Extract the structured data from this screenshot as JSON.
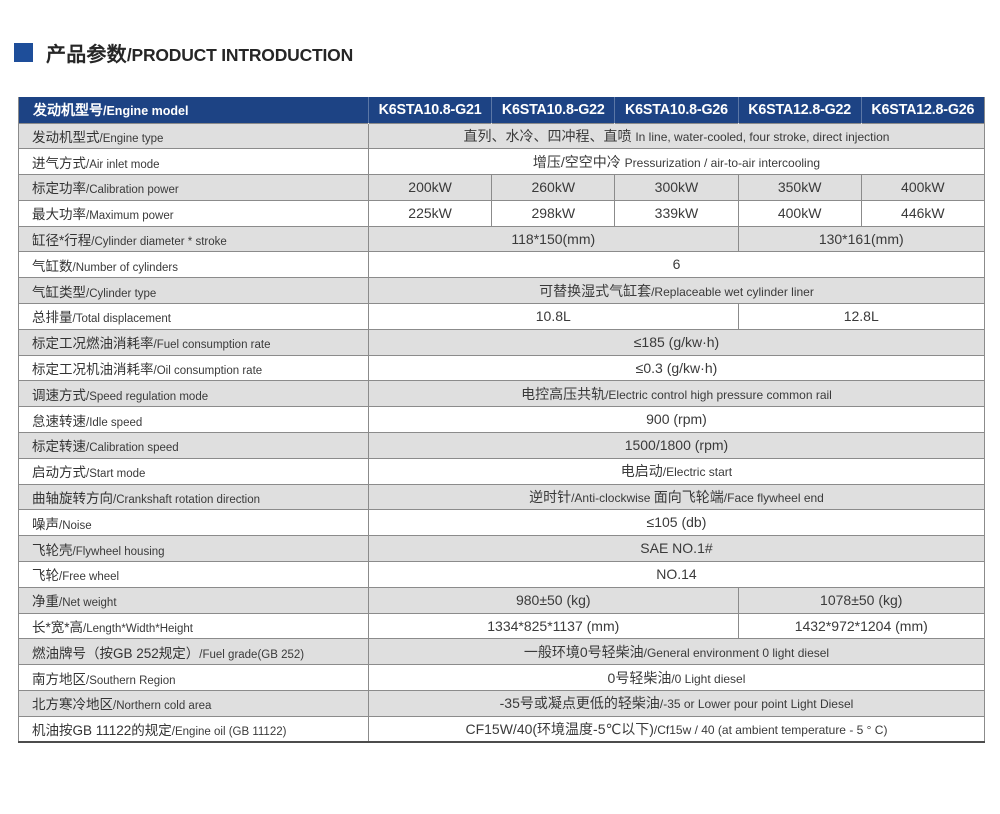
{
  "title": {
    "cn": "产品参数",
    "en": "/PRODUCT INTRODUCTION"
  },
  "colors": {
    "header_bg": "#1d4384",
    "title_square": "#1e4e9a",
    "row_shade": "#dfdfdf",
    "grid_border": "#8b8b8b",
    "text": "#333333"
  },
  "table": {
    "header": {
      "label": [
        {
          "t": "发动机型号"
        },
        {
          "t": "/Engine model",
          "en": true
        }
      ],
      "models": [
        "K6STA10.8-G21",
        "K6STA10.8-G22",
        "K6STA10.8-G26",
        "K6STA12.8-G22",
        "K6STA12.8-G26"
      ]
    },
    "rows": [
      {
        "name": "engine-type",
        "label": [
          {
            "t": "发动机型式"
          },
          {
            "t": "/Engine type",
            "en": true
          }
        ],
        "cells": [
          {
            "span": 5,
            "seg": [
              {
                "t": "直列、水冷、四冲程、直喷 "
              },
              {
                "t": "In line, water-cooled, four stroke, direct injection",
                "en": true
              }
            ]
          }
        ]
      },
      {
        "name": "air-inlet-mode",
        "label": [
          {
            "t": "进气方式"
          },
          {
            "t": "/Air inlet mode",
            "en": true
          }
        ],
        "cells": [
          {
            "span": 5,
            "seg": [
              {
                "t": "增压/空空中冷 "
              },
              {
                "t": "Pressurization / air-to-air intercooling",
                "en": true
              }
            ]
          }
        ]
      },
      {
        "name": "calibration-power",
        "label": [
          {
            "t": "标定功率"
          },
          {
            "t": "/Calibration power",
            "en": true
          }
        ],
        "cells": [
          {
            "span": 1,
            "seg": [
              {
                "t": "200kW"
              }
            ]
          },
          {
            "span": 1,
            "seg": [
              {
                "t": "260kW"
              }
            ]
          },
          {
            "span": 1,
            "seg": [
              {
                "t": "300kW"
              }
            ]
          },
          {
            "span": 1,
            "seg": [
              {
                "t": "350kW"
              }
            ]
          },
          {
            "span": 1,
            "seg": [
              {
                "t": "400kW"
              }
            ]
          }
        ]
      },
      {
        "name": "maximum-power",
        "label": [
          {
            "t": "最大功率"
          },
          {
            "t": "/Maximum power",
            "en": true
          }
        ],
        "cells": [
          {
            "span": 1,
            "seg": [
              {
                "t": "225kW"
              }
            ]
          },
          {
            "span": 1,
            "seg": [
              {
                "t": "298kW"
              }
            ]
          },
          {
            "span": 1,
            "seg": [
              {
                "t": "339kW"
              }
            ]
          },
          {
            "span": 1,
            "seg": [
              {
                "t": "400kW"
              }
            ]
          },
          {
            "span": 1,
            "seg": [
              {
                "t": "446kW"
              }
            ]
          }
        ]
      },
      {
        "name": "cylinder-diameter-stroke",
        "label": [
          {
            "t": "缸径*行程"
          },
          {
            "t": "/Cylinder diameter * stroke",
            "en": true
          }
        ],
        "cells": [
          {
            "span": 3,
            "seg": [
              {
                "t": "118*150(mm)"
              }
            ]
          },
          {
            "span": 2,
            "seg": [
              {
                "t": "130*161(mm)"
              }
            ]
          }
        ]
      },
      {
        "name": "number-of-cylinders",
        "label": [
          {
            "t": "气缸数"
          },
          {
            "t": "/Number of cylinders",
            "en": true
          }
        ],
        "cells": [
          {
            "span": 5,
            "seg": [
              {
                "t": "6"
              }
            ]
          }
        ]
      },
      {
        "name": "cylinder-type",
        "label": [
          {
            "t": "气缸类型"
          },
          {
            "t": "/Cylinder type",
            "en": true
          }
        ],
        "cells": [
          {
            "span": 5,
            "seg": [
              {
                "t": "可替换湿式气缸套"
              },
              {
                "t": "/Replaceable wet cylinder liner",
                "en": true
              }
            ]
          }
        ]
      },
      {
        "name": "total-displacement",
        "label": [
          {
            "t": "总排量"
          },
          {
            "t": "/Total displacement",
            "en": true
          }
        ],
        "cells": [
          {
            "span": 3,
            "seg": [
              {
                "t": "10.8L"
              }
            ]
          },
          {
            "span": 2,
            "seg": [
              {
                "t": "12.8L"
              }
            ]
          }
        ]
      },
      {
        "name": "fuel-consumption-rate",
        "label": [
          {
            "t": "标定工况燃油消耗率"
          },
          {
            "t": "/Fuel consumption rate",
            "en": true
          }
        ],
        "cells": [
          {
            "span": 5,
            "seg": [
              {
                "t": "≤185 (g/kw·h)"
              }
            ]
          }
        ]
      },
      {
        "name": "oil-consumption-rate",
        "label": [
          {
            "t": "标定工况机油消耗率"
          },
          {
            "t": "/Oil consumption rate",
            "en": true
          }
        ],
        "cells": [
          {
            "span": 5,
            "seg": [
              {
                "t": "≤0.3 (g/kw·h)"
              }
            ]
          }
        ]
      },
      {
        "name": "speed-regulation-mode",
        "label": [
          {
            "t": "调速方式"
          },
          {
            "t": "/Speed regulation mode",
            "en": true
          }
        ],
        "cells": [
          {
            "span": 5,
            "seg": [
              {
                "t": "电控高压共轨"
              },
              {
                "t": "/Electric control high pressure common rail",
                "en": true
              }
            ]
          }
        ]
      },
      {
        "name": "idle-speed",
        "label": [
          {
            "t": "怠速转速"
          },
          {
            "t": "/Idle speed",
            "en": true
          }
        ],
        "cells": [
          {
            "span": 5,
            "seg": [
              {
                "t": "900 (rpm)"
              }
            ]
          }
        ]
      },
      {
        "name": "calibration-speed",
        "label": [
          {
            "t": "标定转速"
          },
          {
            "t": "/Calibration speed",
            "en": true
          }
        ],
        "cells": [
          {
            "span": 5,
            "seg": [
              {
                "t": "1500/1800 (rpm)"
              }
            ]
          }
        ]
      },
      {
        "name": "start-mode",
        "label": [
          {
            "t": "启动方式"
          },
          {
            "t": "/Start mode",
            "en": true
          }
        ],
        "cells": [
          {
            "span": 5,
            "seg": [
              {
                "t": "电启动"
              },
              {
                "t": "/Electric start",
                "en": true
              }
            ]
          }
        ]
      },
      {
        "name": "crankshaft-rotation-direction",
        "label": [
          {
            "t": "曲轴旋转方向"
          },
          {
            "t": "/Crankshaft rotation direction",
            "en": true
          }
        ],
        "cells": [
          {
            "span": 5,
            "seg": [
              {
                "t": "逆时针"
              },
              {
                "t": "/Anti-clockwise ",
                "en": true
              },
              {
                "t": "面向飞轮端"
              },
              {
                "t": "/Face flywheel end",
                "en": true
              }
            ]
          }
        ]
      },
      {
        "name": "noise",
        "label": [
          {
            "t": "噪声"
          },
          {
            "t": "/Noise",
            "en": true
          }
        ],
        "cells": [
          {
            "span": 5,
            "seg": [
              {
                "t": "≤105 (db)"
              }
            ]
          }
        ]
      },
      {
        "name": "flywheel-housing",
        "label": [
          {
            "t": "飞轮壳"
          },
          {
            "t": "/Flywheel housing",
            "en": true
          }
        ],
        "cells": [
          {
            "span": 5,
            "seg": [
              {
                "t": "SAE NO.1#"
              }
            ]
          }
        ]
      },
      {
        "name": "free-wheel",
        "label": [
          {
            "t": "飞轮"
          },
          {
            "t": "/Free wheel",
            "en": true
          }
        ],
        "cells": [
          {
            "span": 5,
            "seg": [
              {
                "t": "NO.14"
              }
            ]
          }
        ]
      },
      {
        "name": "net-weight",
        "label": [
          {
            "t": "净重"
          },
          {
            "t": "/Net weight",
            "en": true
          }
        ],
        "cells": [
          {
            "span": 3,
            "seg": [
              {
                "t": "980±50 (kg)"
              }
            ]
          },
          {
            "span": 2,
            "seg": [
              {
                "t": "1078±50 (kg)"
              }
            ]
          }
        ]
      },
      {
        "name": "length-width-height",
        "label": [
          {
            "t": "长*宽*高"
          },
          {
            "t": "/Length*Width*Height",
            "en": true
          }
        ],
        "cells": [
          {
            "span": 3,
            "seg": [
              {
                "t": "1334*825*1137 (mm)"
              }
            ]
          },
          {
            "span": 2,
            "seg": [
              {
                "t": "1432*972*1204 (mm)"
              }
            ]
          }
        ]
      },
      {
        "name": "fuel-grade",
        "label": [
          {
            "t": "燃油牌号（按GB 252规定）"
          },
          {
            "t": "/Fuel grade(GB 252)",
            "en": true
          }
        ],
        "cells": [
          {
            "span": 5,
            "seg": [
              {
                "t": "一般环境0号轻柴油"
              },
              {
                "t": "/General environment 0 light diesel",
                "en": true
              }
            ]
          }
        ]
      },
      {
        "name": "southern-region",
        "label": [
          {
            "t": "南方地区"
          },
          {
            "t": "/Southern Region",
            "en": true
          }
        ],
        "cells": [
          {
            "span": 5,
            "seg": [
              {
                "t": "0号轻柴油"
              },
              {
                "t": "/0 Light diesel",
                "en": true
              }
            ]
          }
        ]
      },
      {
        "name": "northern-cold-area",
        "label": [
          {
            "t": "北方寒冷地区"
          },
          {
            "t": "/Northern cold area",
            "en": true
          }
        ],
        "cells": [
          {
            "span": 5,
            "seg": [
              {
                "t": "-35号或凝点更低的轻柴油"
              },
              {
                "t": "/-35 or Lower pour point Light Diesel",
                "en": true
              }
            ]
          }
        ]
      },
      {
        "name": "engine-oil",
        "label": [
          {
            "t": "机油按GB 11122的规定"
          },
          {
            "t": "/Engine oil (GB 11122)",
            "en": true
          }
        ],
        "cells": [
          {
            "span": 5,
            "seg": [
              {
                "t": "CF15W/40(环境温度-5℃以下)"
              },
              {
                "t": "/Cf15w / 40 (at ambient temperature - 5 ° C)",
                "en": true
              }
            ]
          }
        ]
      }
    ]
  }
}
